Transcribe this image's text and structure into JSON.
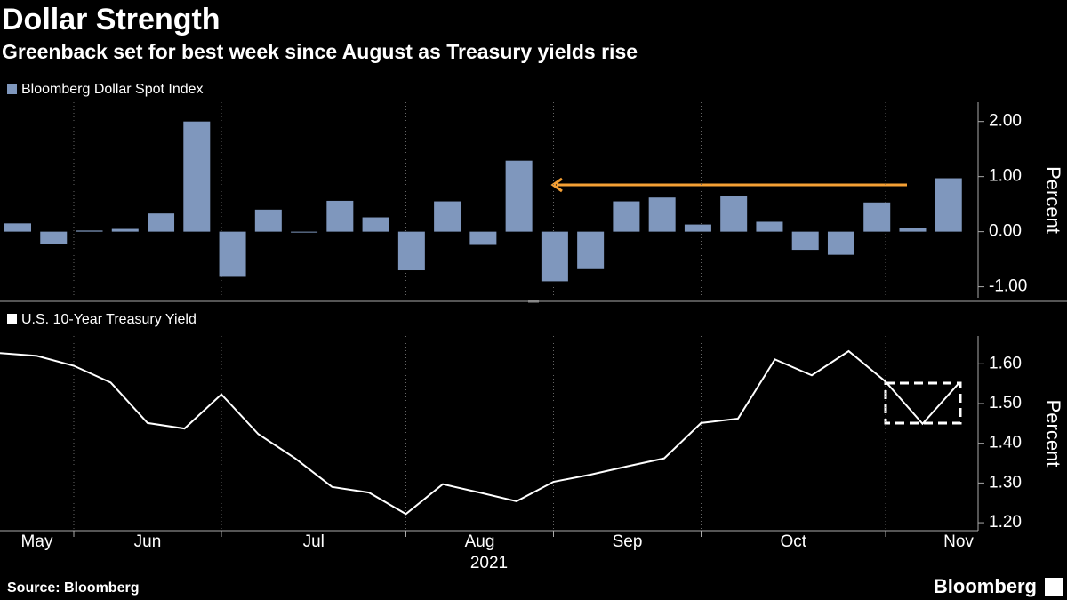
{
  "title": "Dollar Strength",
  "subtitle": "Greenback set for best week since August as Treasury yields rise",
  "source": "Source: Bloomberg",
  "logo": "Bloomberg",
  "chart_data": [
    {
      "type": "bar",
      "series": [
        {
          "name": "Bloomberg Dollar Spot Index",
          "color": "#7f97bd",
          "values": [
            0.15,
            -0.22,
            0.02,
            0.05,
            0.33,
            2.0,
            -0.82,
            0.4,
            -0.01,
            0.56,
            0.26,
            -0.7,
            0.55,
            -0.24,
            1.29,
            -0.9,
            -0.68,
            0.55,
            0.62,
            0.13,
            0.65,
            0.18,
            -0.33,
            -0.42,
            0.53,
            0.07,
            0.97
          ]
        }
      ],
      "categories": [
        null,
        null,
        null,
        null,
        null,
        null,
        null,
        null,
        null,
        null,
        null,
        null,
        null,
        null,
        null,
        null,
        null,
        null,
        null,
        null,
        null,
        null,
        null,
        null,
        null,
        null,
        null
      ],
      "ylim": [
        -1.2,
        2.35
      ],
      "yticks": [
        {
          "value": -1,
          "label": "-1.00"
        },
        {
          "value": 0,
          "label": "0.00"
        },
        {
          "value": 1,
          "label": "1.00"
        },
        {
          "value": 2,
          "label": "2.00"
        }
      ],
      "y_label": "Percent"
    },
    {
      "type": "line",
      "series": [
        {
          "name": "U.S. 10-Year Treasury Yield",
          "color": "#ffffff",
          "values": [
            1.627,
            1.62,
            1.595,
            1.553,
            1.451,
            1.437,
            1.523,
            1.423,
            1.362,
            1.29,
            1.276,
            1.222,
            1.297,
            1.276,
            1.254,
            1.303,
            1.321,
            1.342,
            1.362,
            1.451,
            1.462,
            1.611,
            1.571,
            1.632,
            1.555,
            1.449,
            1.553
          ]
        }
      ],
      "ylim": [
        1.18,
        1.67
      ],
      "yticks": [
        {
          "value": 1.2,
          "label": "1.20"
        },
        {
          "value": 1.3,
          "label": "1.30"
        },
        {
          "value": 1.4,
          "label": "1.40"
        },
        {
          "value": 1.5,
          "label": "1.50"
        },
        {
          "value": 1.6,
          "label": "1.60"
        }
      ],
      "y_label": "Percent",
      "xticks": [
        {
          "value": 1,
          "label": "May"
        },
        {
          "value": 4,
          "label": "Jun"
        },
        {
          "value": 8.5,
          "label": "Jul"
        },
        {
          "value": 13,
          "label": "Aug"
        },
        {
          "value": 17,
          "label": "Sep"
        },
        {
          "value": 21.5,
          "label": "Oct"
        },
        {
          "value": 26,
          "label": "Nov"
        }
      ],
      "xgrid": [
        2,
        6,
        11,
        15,
        19,
        24
      ],
      "x_label": "2021"
    }
  ]
}
